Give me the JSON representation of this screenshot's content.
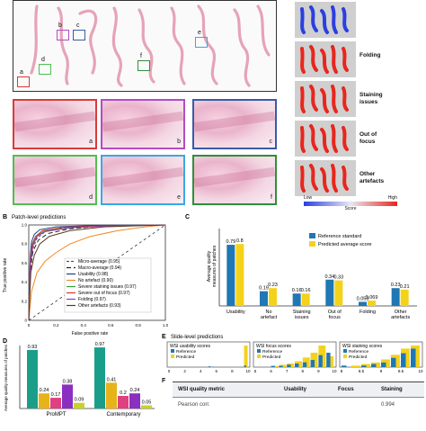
{
  "panel_a": {
    "region_labels": [
      "a",
      "b",
      "c",
      "d",
      "e",
      "f"
    ],
    "region_colors": [
      "#d93a3a",
      "#b24cc4",
      "#3a5aa8",
      "#4fbf4f",
      "#39a8e6",
      "#2f8f3a"
    ],
    "tile_labels": [
      "a",
      "b",
      "c",
      "d",
      "e",
      "f"
    ],
    "heatmap_labels": [
      "Folding",
      "Staining\nissues",
      "Out of\nfocus",
      "Other\nartefacts"
    ],
    "scale": {
      "low": "Low",
      "mid": "Score",
      "high": "High"
    }
  },
  "panel_b": {
    "letter": "B",
    "title": "Patch-level predictions",
    "xlabel": "False positive rate",
    "ylabel": "True positive rate",
    "legend": [
      {
        "label": "Micro-average (0.95)",
        "color": "#555555",
        "dash": "3,2"
      },
      {
        "label": "Macro-average (0.94)",
        "color": "#222222",
        "dash": "5,3"
      },
      {
        "label": "Usability (0.98)",
        "color": "#1f3f8f",
        "dash": ""
      },
      {
        "label": "No artefact (0.90)",
        "color": "#f08a24",
        "dash": ""
      },
      {
        "label": "Severe staining issues (0.97)",
        "color": "#3aa23a",
        "dash": ""
      },
      {
        "label": "Severe out of focus (0.97)",
        "color": "#d8342a",
        "dash": ""
      },
      {
        "label": "Folding (0.97)",
        "color": "#8a3fb0",
        "dash": ""
      },
      {
        "label": "Other artefacts (0.93)",
        "color": "#5b3a1e",
        "dash": ""
      }
    ]
  },
  "chart_data": [
    {
      "type": "line",
      "panel": "B",
      "title": "Patch-level predictions",
      "xlabel": "False positive rate",
      "ylabel": "True positive rate",
      "xlim": [
        0,
        1
      ],
      "ylim": [
        0,
        1
      ],
      "x_ticks": [
        "0",
        "0.2",
        "0.4",
        "0.6",
        "0.8",
        "1.0"
      ],
      "y_ticks": [
        "0",
        "0.2",
        "0.4",
        "0.6",
        "0.8",
        "1.0"
      ],
      "series": [
        {
          "name": "Micro-average (0.95)",
          "x": [
            0,
            0.01,
            0.03,
            0.06,
            0.12,
            0.25,
            0.5,
            1
          ],
          "y": [
            0,
            0.55,
            0.75,
            0.86,
            0.93,
            0.97,
            0.99,
            1
          ]
        },
        {
          "name": "Macro-average (0.94)",
          "x": [
            0,
            0.01,
            0.03,
            0.07,
            0.14,
            0.3,
            0.55,
            1
          ],
          "y": [
            0,
            0.5,
            0.72,
            0.84,
            0.91,
            0.96,
            0.99,
            1
          ]
        },
        {
          "name": "Usability (0.98)",
          "x": [
            0,
            0.01,
            0.02,
            0.04,
            0.08,
            0.2,
            0.5,
            1
          ],
          "y": [
            0,
            0.65,
            0.82,
            0.9,
            0.95,
            0.98,
            0.995,
            1
          ]
        },
        {
          "name": "No artefact (0.90)",
          "x": [
            0,
            0.02,
            0.06,
            0.12,
            0.2,
            0.3,
            0.45,
            0.65,
            0.85,
            1
          ],
          "y": [
            0,
            0.3,
            0.5,
            0.62,
            0.71,
            0.8,
            0.88,
            0.94,
            0.98,
            1
          ]
        },
        {
          "name": "Severe staining issues (0.97)",
          "x": [
            0,
            0.01,
            0.03,
            0.06,
            0.12,
            0.3,
            0.6,
            1
          ],
          "y": [
            0,
            0.62,
            0.8,
            0.89,
            0.94,
            0.97,
            0.99,
            1
          ]
        },
        {
          "name": "Severe out of focus (0.97)",
          "x": [
            0,
            0.01,
            0.025,
            0.05,
            0.1,
            0.25,
            0.55,
            1
          ],
          "y": [
            0,
            0.6,
            0.8,
            0.88,
            0.94,
            0.975,
            0.99,
            1
          ]
        },
        {
          "name": "Folding (0.97)",
          "x": [
            0,
            0.01,
            0.03,
            0.06,
            0.12,
            0.3,
            0.6,
            1
          ],
          "y": [
            0,
            0.58,
            0.78,
            0.88,
            0.93,
            0.97,
            0.99,
            1
          ]
        },
        {
          "name": "Other artefacts (0.93)",
          "x": [
            0,
            0.015,
            0.04,
            0.08,
            0.15,
            0.3,
            0.55,
            1
          ],
          "y": [
            0,
            0.5,
            0.68,
            0.8,
            0.88,
            0.94,
            0.98,
            1
          ]
        }
      ]
    },
    {
      "type": "bar",
      "panel": "C",
      "ylabel": "Average quality measures of patches",
      "ylim": [
        0,
        1
      ],
      "categories": [
        "Usability",
        "No\nartefact",
        "Staining\nissues",
        "Out of\nfocus",
        "Folding",
        "Other\nartefacts"
      ],
      "series": [
        {
          "name": "Reference standard",
          "color": "#1f77b4",
          "values": [
            0.79,
            0.19,
            0.16,
            0.34,
            0.053,
            0.23
          ]
        },
        {
          "name": "Predicted average score",
          "color": "#f5d21a",
          "values": [
            0.8,
            0.23,
            0.16,
            0.33,
            0.069,
            0.21
          ]
        }
      ],
      "value_labels": [
        [
          "0.79",
          "0.8"
        ],
        [
          "0.19",
          "0.23"
        ],
        [
          "0.16",
          "0.16"
        ],
        [
          "0.34",
          "0.33"
        ],
        [
          "0.053",
          "0.069"
        ],
        [
          "0.23",
          "0.21"
        ]
      ]
    },
    {
      "type": "bar",
      "panel": "D",
      "ylabel": "Average quality measures of patches",
      "ylim": [
        0,
        1
      ],
      "groups": [
        "ProMPT",
        "Contemporary"
      ],
      "colors": [
        "#1a9e8a",
        "#e8b21a",
        "#e0407f",
        "#8a2fc0",
        "#c9d12a"
      ],
      "values": [
        [
          0.93,
          0.24,
          0.17,
          0.38,
          0.09
        ],
        [
          0.97,
          0.41,
          0.2,
          0.24,
          0.05
        ]
      ],
      "value_labels": [
        [
          "0.93",
          "0.24",
          "0.17",
          "0.38",
          "0.09"
        ],
        [
          "0.97",
          "0.41",
          "0.2",
          "0.24",
          "0.05"
        ]
      ]
    },
    {
      "type": "bar",
      "panel": "E",
      "title": "Slide-level predictions",
      "subcharts": [
        {
          "title": "WSI usability scores",
          "xlim": [
            0,
            10
          ],
          "x_ticks": [
            "0",
            "2",
            "4",
            "6",
            "8",
            "10"
          ],
          "reference_counts": [
            0,
            0,
            0,
            0,
            0,
            0,
            0,
            0,
            0,
            0,
            2,
            1,
            0,
            0,
            0,
            0,
            0,
            0,
            0,
            4
          ],
          "predicted_counts": [
            0,
            0,
            0,
            0,
            0,
            0,
            0,
            0,
            0,
            0,
            0,
            0,
            0,
            0,
            0,
            0,
            0,
            0,
            0,
            50
          ]
        },
        {
          "title": "WSI focus scores",
          "xlim": [
            5,
            10
          ],
          "x_ticks": [
            "5",
            "6",
            "7",
            "8",
            "9",
            "10"
          ],
          "reference_counts": [
            0,
            0,
            1,
            1,
            2,
            3,
            4,
            6,
            10,
            12
          ],
          "predicted_counts": [
            0,
            0,
            1,
            2,
            3,
            5,
            8,
            12,
            18,
            9
          ]
        },
        {
          "title": "WSI staining scores",
          "xlim": [
            8,
            10
          ],
          "x_ticks": [
            "8",
            "8.5",
            "9",
            "9.5",
            "10"
          ],
          "reference_counts": [
            1,
            0,
            1,
            2,
            3,
            6,
            9,
            12
          ],
          "predicted_counts": [
            0,
            1,
            2,
            3,
            5,
            8,
            12,
            14
          ]
        }
      ],
      "legend": [
        {
          "name": "Reference",
          "color": "#1f77b4"
        },
        {
          "name": "Predicted",
          "color": "#f5d21a"
        }
      ]
    }
  ],
  "panel_d": {
    "letter": "D"
  },
  "panel_c": {
    "letter": "C"
  },
  "panel_e": {
    "letter": "E"
  },
  "panel_f": {
    "letter": "F",
    "headers": [
      "WSI quality metric",
      "Usability",
      "Focus",
      "Staining"
    ],
    "first_row": [
      "Pearson corr.",
      "",
      "",
      "0.994"
    ]
  }
}
